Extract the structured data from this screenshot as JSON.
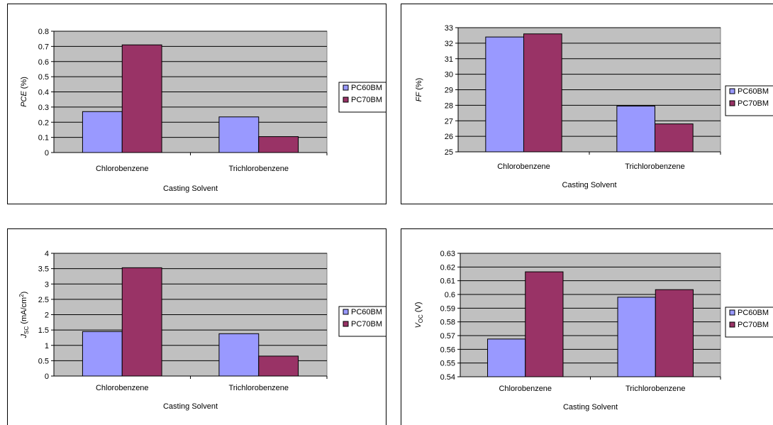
{
  "colors": {
    "PC60BM": "#9999ff",
    "PC70BM": "#993366",
    "plot_bg": "#c0c0c0",
    "grid": "#000000"
  },
  "chart_data": [
    {
      "type": "bar",
      "categories": [
        "Chlorobenzene",
        "Trichlorobenzene"
      ],
      "series": [
        {
          "name": "PC60BM",
          "values": [
            0.27,
            0.235
          ]
        },
        {
          "name": "PC70BM",
          "values": [
            0.71,
            0.105
          ]
        }
      ],
      "xlabel": "Casting Solvent",
      "ylabel": {
        "main": "PCE",
        "sub": "",
        "sup": "",
        "unit": " (%)"
      },
      "ylim": [
        0,
        0.8
      ],
      "yticks": [
        "0",
        "0.1",
        "0.2",
        "0.3",
        "0.4",
        "0.5",
        "0.6",
        "0.7",
        "0.8"
      ],
      "grid": true,
      "legend": "right"
    },
    {
      "type": "bar",
      "categories": [
        "Chlorobenzene",
        "Trichlorobenzene"
      ],
      "series": [
        {
          "name": "PC60BM",
          "values": [
            32.4,
            27.95
          ]
        },
        {
          "name": "PC70BM",
          "values": [
            32.6,
            26.8
          ]
        }
      ],
      "xlabel": "Casting Solvent",
      "ylabel": {
        "main": "FF",
        "sub": "",
        "sup": "",
        "unit": "  (%)"
      },
      "ylim": [
        25,
        33
      ],
      "yticks": [
        "25",
        "26",
        "27",
        "28",
        "29",
        "30",
        "31",
        "32",
        "33"
      ],
      "grid": true,
      "legend": "right"
    },
    {
      "type": "bar",
      "categories": [
        "Chlorobenzene",
        "Trichlorobenzene"
      ],
      "series": [
        {
          "name": "PC60BM",
          "values": [
            1.45,
            1.38
          ]
        },
        {
          "name": "PC70BM",
          "values": [
            3.53,
            0.65
          ]
        }
      ],
      "xlabel": "Casting Solvent",
      "ylabel": {
        "main": "J",
        "sub": "SC",
        "sup": "2",
        "unit": " (mA/cm"
      },
      "ylim": [
        0,
        4
      ],
      "yticks": [
        "0",
        "0.5",
        "1",
        "1.5",
        "2",
        "2.5",
        "3",
        "3.5",
        "4"
      ],
      "grid": true,
      "legend": "right"
    },
    {
      "type": "bar",
      "categories": [
        "Chlorobenzene",
        "Trichlorobenzene"
      ],
      "series": [
        {
          "name": "PC60BM",
          "values": [
            0.5675,
            0.598
          ]
        },
        {
          "name": "PC70BM",
          "values": [
            0.6165,
            0.6035
          ]
        }
      ],
      "xlabel": "Casting Solvent",
      "ylabel": {
        "main": "V",
        "sub": "OC",
        "sup": "",
        "unit": "  (V)"
      },
      "ylim": [
        0.54,
        0.63
      ],
      "yticks": [
        "0.54",
        "0.55",
        "0.56",
        "0.57",
        "0.58",
        "0.59",
        "0.6",
        "0.61",
        "0.62",
        "0.63"
      ],
      "grid": true,
      "legend": "right"
    }
  ]
}
